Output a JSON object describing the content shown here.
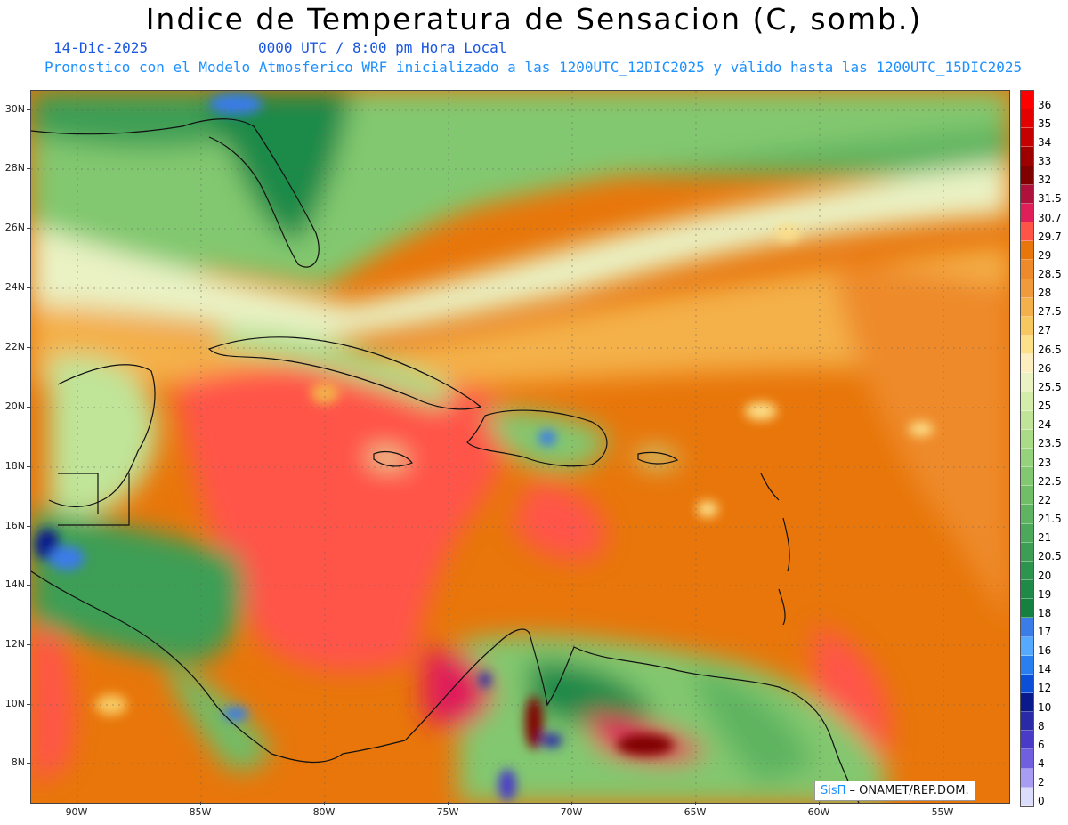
{
  "header": {
    "title": "Indice de Temperatura de Sensacion (C, somb.)",
    "date": "14-Dic-2025",
    "time": "0000 UTC / 8:00 pm Hora Local",
    "model_info": "Pronostico con el Modelo Atmosferico WRF inicializado a las 1200UTC_12DIC2025 y válido hasta las  1200UTC_15DIC2025"
  },
  "map": {
    "lat_labels": [
      "30N",
      "28N",
      "26N",
      "24N",
      "22N",
      "20N",
      "18N",
      "16N",
      "14N",
      "12N",
      "10N",
      "8N"
    ],
    "lon_labels": [
      "90W",
      "85W",
      "80W",
      "75W",
      "70W",
      "65W",
      "60W",
      "55W"
    ]
  },
  "legend": {
    "labels": [
      "36",
      "35",
      "34",
      "33",
      "32",
      "31.5",
      "30.7",
      "29.7",
      "29",
      "28.5",
      "28",
      "27.5",
      "27",
      "26.5",
      "26",
      "25.5",
      "25",
      "24",
      "23.5",
      "23",
      "22.5",
      "22",
      "21.5",
      "21",
      "20.5",
      "20",
      "19",
      "18",
      "17",
      "16",
      "14",
      "12",
      "10",
      "8",
      "6",
      "4",
      "2",
      "0"
    ],
    "colors": [
      "#ff0000",
      "#e30000",
      "#c40000",
      "#9e0000",
      "#800000",
      "#b0103c",
      "#e01e5a",
      "#ff5548",
      "#e8760a",
      "#ee8a2a",
      "#f09a3c",
      "#f4b04a",
      "#f8c860",
      "#fce08a",
      "#fdeec0",
      "#eaf2c4",
      "#d4ecaa",
      "#c0e498",
      "#aadc88",
      "#96d27c",
      "#82c870",
      "#70be68",
      "#5eb460",
      "#4ca85a",
      "#3c9e54",
      "#2c944e",
      "#1f8a48",
      "#168040",
      "#3a7ce8",
      "#55aaff",
      "#2a7ff0",
      "#0b4fd8",
      "#0a1a8c",
      "#2a2aa8",
      "#4a3ac8",
      "#7060e0",
      "#a89cf4",
      "#dcdcfc"
    ]
  },
  "credit": {
    "logo": "SisΠ",
    "text": " – ONAMET/REP.DOM."
  }
}
